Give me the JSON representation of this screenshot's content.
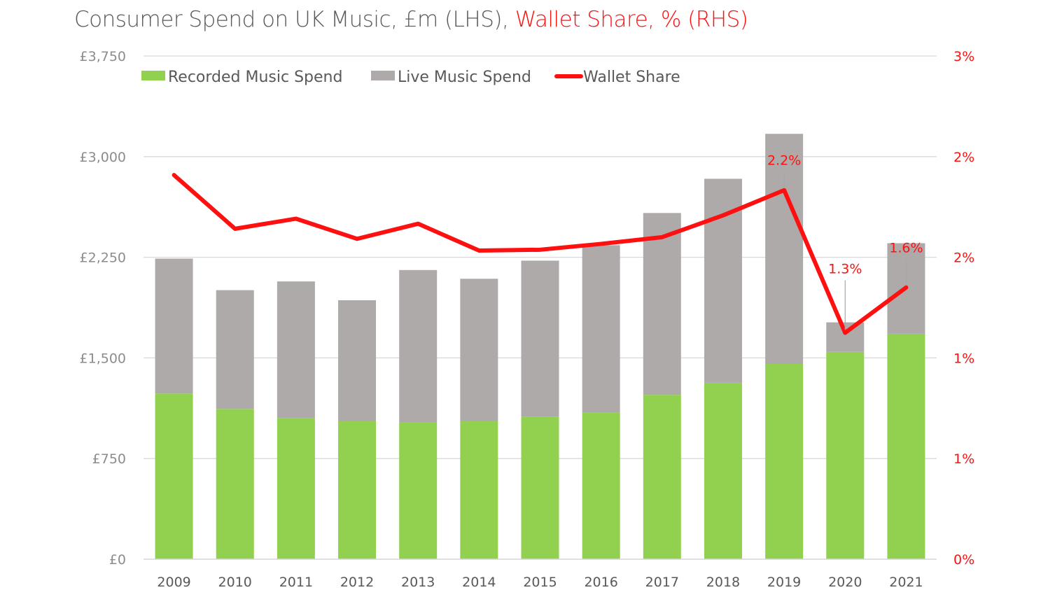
{
  "title": {
    "main": "Consumer Spend on UK Music, £m (LHS),",
    "highlight": "Wallet Share, % (RHS)"
  },
  "colors": {
    "recorded": "#92d050",
    "live": "#aeaaaa",
    "wallet": "#ff1010",
    "grid": "#d9d9d9"
  },
  "chart_data": {
    "type": "bar",
    "stacked": true,
    "categories": [
      "2009",
      "2010",
      "2011",
      "2012",
      "2013",
      "2014",
      "2015",
      "2016",
      "2017",
      "2018",
      "2019",
      "2020",
      "2021"
    ],
    "series": [
      {
        "name": "Recorded Music Spend",
        "axis": "left",
        "type": "bar",
        "values": [
          1235,
          1120,
          1050,
          1030,
          1020,
          1030,
          1060,
          1095,
          1225,
          1315,
          1455,
          1545,
          1680
        ]
      },
      {
        "name": "Live Music Spend",
        "axis": "left",
        "type": "bar",
        "values": [
          1005,
          885,
          1020,
          900,
          1135,
          1060,
          1165,
          1245,
          1355,
          1520,
          1715,
          220,
          675
        ]
      },
      {
        "name": "Wallet Share",
        "axis": "right",
        "type": "line",
        "values": [
          2.29,
          1.97,
          2.03,
          1.91,
          2.0,
          1.84,
          1.845,
          1.88,
          1.92,
          2.05,
          2.2,
          1.35,
          1.62
        ]
      }
    ],
    "data_labels": [
      {
        "index": 10,
        "text": "2.2%"
      },
      {
        "index": 11,
        "text": "1.3%"
      },
      {
        "index": 12,
        "text": "1.6%"
      }
    ],
    "y_left": {
      "min": 0,
      "max": 3750,
      "ticks": [
        0,
        750,
        1500,
        2250,
        3000,
        3750
      ],
      "tick_labels": [
        "£0",
        "£750",
        "£1,500",
        "£2,250",
        "£3,000",
        "£3,750"
      ]
    },
    "y_right": {
      "min": 0,
      "max": 3,
      "ticks": [
        0,
        0.6,
        1.2,
        1.8,
        2.4,
        3.0
      ],
      "tick_labels": [
        "0%",
        "1%",
        "1%",
        "2%",
        "2%",
        "3%"
      ]
    },
    "grid": true,
    "legend_position": "top-left"
  }
}
